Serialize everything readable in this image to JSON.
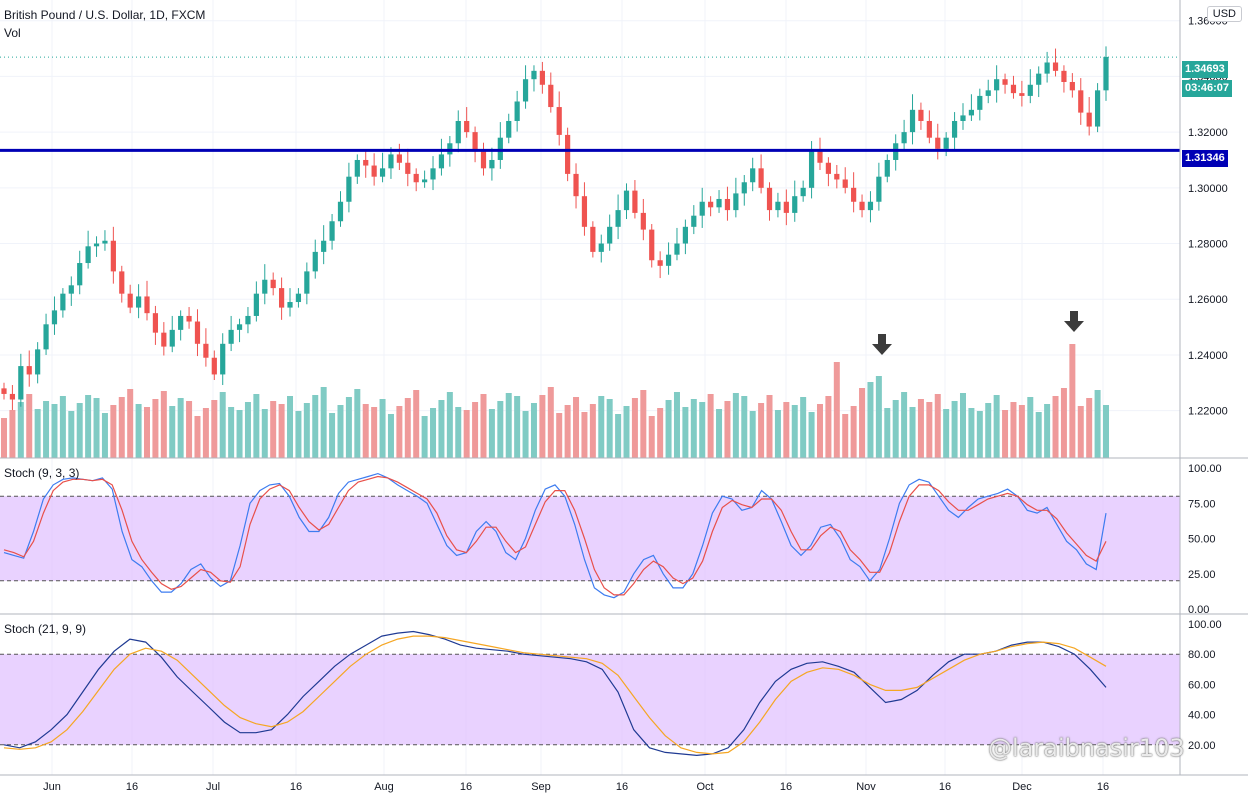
{
  "header": {
    "symbol_title": "British Pound / U.S. Dollar, 1D, FXCM",
    "volume_label": "Vol",
    "currency": "USD"
  },
  "price_badges": {
    "last_price": "1.34693",
    "countdown": "03:46:07",
    "line_price": "1.31346"
  },
  "colors": {
    "up": "#26a69a",
    "down": "#ef5350",
    "hline": "#0000b5",
    "stoch_k": "#2962ff",
    "stoch_d": "#ff6f4f",
    "slow_d": "#f5a623",
    "band_fill": "#e1c3ff"
  },
  "watermark": "@laraibnasir103",
  "annotations": [
    "down-arrow-icon",
    "down-arrow-icon"
  ],
  "chart_data": [
    {
      "type": "candlestick",
      "title": "British Pound / U.S. Dollar, 1D, FXCM",
      "ylim": [
        1.203,
        1.366
      ],
      "y_ticks": [
        "1.36000",
        "1.34000",
        "1.32000",
        "1.30000",
        "1.28000",
        "1.26000",
        "1.24000",
        "1.22000"
      ],
      "x_ticks": [
        "Jun",
        "16",
        "Jul",
        "16",
        "Aug",
        "16",
        "Sep",
        "16",
        "Oct",
        "16",
        "Nov",
        "16",
        "Dec",
        "16"
      ],
      "horizontal_line": 1.31346,
      "last_price": 1.34693,
      "close_path": [
        [
          0,
          1.226
        ],
        [
          1,
          1.224
        ],
        [
          2,
          1.236
        ],
        [
          3,
          1.233
        ],
        [
          4,
          1.242
        ],
        [
          5,
          1.251
        ],
        [
          6,
          1.256
        ],
        [
          7,
          1.262
        ],
        [
          8,
          1.265
        ],
        [
          9,
          1.273
        ],
        [
          10,
          1.279
        ],
        [
          11,
          1.28
        ],
        [
          12,
          1.281
        ],
        [
          13,
          1.27
        ],
        [
          14,
          1.262
        ],
        [
          15,
          1.257
        ],
        [
          16,
          1.261
        ],
        [
          17,
          1.255
        ],
        [
          18,
          1.248
        ],
        [
          19,
          1.243
        ],
        [
          20,
          1.249
        ],
        [
          21,
          1.254
        ],
        [
          22,
          1.252
        ],
        [
          23,
          1.244
        ],
        [
          24,
          1.239
        ],
        [
          25,
          1.233
        ],
        [
          26,
          1.244
        ],
        [
          27,
          1.249
        ],
        [
          28,
          1.251
        ],
        [
          29,
          1.254
        ],
        [
          30,
          1.262
        ],
        [
          31,
          1.267
        ],
        [
          32,
          1.264
        ],
        [
          33,
          1.257
        ],
        [
          34,
          1.259
        ],
        [
          35,
          1.262
        ],
        [
          36,
          1.27
        ],
        [
          37,
          1.277
        ],
        [
          38,
          1.281
        ],
        [
          39,
          1.288
        ],
        [
          40,
          1.295
        ],
        [
          41,
          1.304
        ],
        [
          42,
          1.31
        ],
        [
          43,
          1.308
        ],
        [
          44,
          1.304
        ],
        [
          45,
          1.307
        ],
        [
          46,
          1.312
        ],
        [
          47,
          1.309
        ],
        [
          48,
          1.305
        ],
        [
          49,
          1.302
        ],
        [
          50,
          1.303
        ],
        [
          51,
          1.307
        ],
        [
          52,
          1.312
        ],
        [
          53,
          1.316
        ],
        [
          54,
          1.324
        ],
        [
          55,
          1.32
        ],
        [
          56,
          1.313
        ],
        [
          57,
          1.307
        ],
        [
          58,
          1.31
        ],
        [
          59,
          1.318
        ],
        [
          60,
          1.324
        ],
        [
          61,
          1.331
        ],
        [
          62,
          1.339
        ],
        [
          63,
          1.342
        ],
        [
          64,
          1.337
        ],
        [
          65,
          1.329
        ],
        [
          66,
          1.319
        ],
        [
          67,
          1.305
        ],
        [
          68,
          1.297
        ],
        [
          69,
          1.286
        ],
        [
          70,
          1.277
        ],
        [
          71,
          1.28
        ],
        [
          72,
          1.286
        ],
        [
          73,
          1.292
        ],
        [
          74,
          1.299
        ],
        [
          75,
          1.291
        ],
        [
          76,
          1.285
        ],
        [
          77,
          1.274
        ],
        [
          78,
          1.272
        ],
        [
          79,
          1.276
        ],
        [
          80,
          1.28
        ],
        [
          81,
          1.286
        ],
        [
          82,
          1.29
        ],
        [
          83,
          1.295
        ],
        [
          84,
          1.293
        ],
        [
          85,
          1.296
        ],
        [
          86,
          1.292
        ],
        [
          87,
          1.298
        ],
        [
          88,
          1.302
        ],
        [
          89,
          1.307
        ],
        [
          90,
          1.3
        ],
        [
          91,
          1.292
        ],
        [
          92,
          1.295
        ],
        [
          93,
          1.291
        ],
        [
          94,
          1.297
        ],
        [
          95,
          1.3
        ],
        [
          96,
          1.313
        ],
        [
          97,
          1.309
        ],
        [
          98,
          1.305
        ],
        [
          99,
          1.303
        ],
        [
          100,
          1.3
        ],
        [
          101,
          1.295
        ],
        [
          102,
          1.292
        ],
        [
          103,
          1.295
        ],
        [
          104,
          1.304
        ],
        [
          105,
          1.31
        ],
        [
          106,
          1.316
        ],
        [
          107,
          1.32
        ],
        [
          108,
          1.328
        ],
        [
          109,
          1.324
        ],
        [
          110,
          1.318
        ],
        [
          111,
          1.314
        ],
        [
          112,
          1.318
        ],
        [
          113,
          1.324
        ],
        [
          114,
          1.326
        ],
        [
          115,
          1.328
        ],
        [
          116,
          1.333
        ],
        [
          117,
          1.335
        ],
        [
          118,
          1.339
        ],
        [
          119,
          1.337
        ],
        [
          120,
          1.334
        ],
        [
          121,
          1.333
        ],
        [
          122,
          1.337
        ],
        [
          123,
          1.341
        ],
        [
          124,
          1.345
        ],
        [
          125,
          1.342
        ],
        [
          126,
          1.338
        ],
        [
          127,
          1.335
        ],
        [
          128,
          1.327
        ],
        [
          129,
          1.322
        ],
        [
          130,
          1.335
        ],
        [
          131,
          1.347
        ]
      ],
      "markers": [
        {
          "label": "down-arrow-icon",
          "at": "volume spike early Nov"
        },
        {
          "label": "down-arrow-icon",
          "at": "volume spike mid Dec"
        }
      ]
    },
    {
      "type": "bar",
      "title": "Vol",
      "note": "volume histogram, colored by candle direction",
      "relative_spikes": [
        "early Nov",
        "mid Dec"
      ]
    },
    {
      "type": "line",
      "title": "Stoch (9, 3, 3)",
      "ylim": [
        0,
        100
      ],
      "y_ticks": [
        "100.00",
        "75.00",
        "50.00",
        "25.00",
        "0.00"
      ],
      "bands": [
        20,
        80
      ],
      "series": [
        {
          "name": "%K",
          "values": [
            40,
            38,
            36,
            55,
            78,
            88,
            92,
            93,
            92,
            91,
            93,
            85,
            55,
            35,
            30,
            20,
            12,
            12,
            18,
            28,
            32,
            22,
            16,
            20,
            45,
            75,
            84,
            88,
            89,
            80,
            65,
            55,
            55,
            65,
            82,
            90,
            92,
            94,
            96,
            93,
            88,
            84,
            80,
            75,
            60,
            45,
            38,
            40,
            55,
            62,
            55,
            40,
            35,
            50,
            70,
            85,
            88,
            80,
            60,
            35,
            15,
            10,
            8,
            12,
            25,
            35,
            38,
            25,
            15,
            15,
            25,
            45,
            68,
            80,
            78,
            70,
            72,
            84,
            78,
            62,
            45,
            38,
            45,
            58,
            60,
            50,
            35,
            30,
            20,
            28,
            50,
            75,
            88,
            92,
            90,
            80,
            70,
            65,
            72,
            78,
            80,
            82,
            85,
            80,
            70,
            68,
            72,
            60,
            48,
            42,
            32,
            28,
            68
          ]
        },
        {
          "name": "%D",
          "values": [
            42,
            40,
            37,
            48,
            68,
            84,
            90,
            92,
            92,
            91,
            92,
            88,
            70,
            48,
            35,
            26,
            18,
            14,
            16,
            22,
            28,
            26,
            20,
            19,
            30,
            60,
            78,
            85,
            88,
            84,
            72,
            62,
            56,
            60,
            72,
            84,
            90,
            92,
            94,
            93,
            90,
            86,
            82,
            78,
            68,
            52,
            42,
            40,
            48,
            58,
            58,
            48,
            40,
            44,
            60,
            76,
            84,
            84,
            70,
            50,
            28,
            15,
            10,
            10,
            18,
            28,
            34,
            30,
            22,
            18,
            22,
            34,
            55,
            72,
            77,
            74,
            72,
            78,
            78,
            70,
            55,
            42,
            42,
            52,
            58,
            55,
            42,
            35,
            26,
            26,
            40,
            62,
            80,
            88,
            88,
            84,
            76,
            70,
            70,
            74,
            78,
            80,
            82,
            80,
            74,
            70,
            70,
            64,
            54,
            46,
            38,
            34,
            48
          ]
        }
      ]
    },
    {
      "type": "line",
      "title": "Stoch (21, 9, 9)",
      "ylim": [
        0,
        100
      ],
      "y_ticks": [
        "100.00",
        "80.00",
        "60.00",
        "40.00",
        "20.00"
      ],
      "bands": [
        20,
        80
      ],
      "series": [
        {
          "name": "%K",
          "values": [
            20,
            18,
            22,
            30,
            40,
            55,
            70,
            82,
            90,
            88,
            78,
            65,
            55,
            45,
            35,
            28,
            28,
            30,
            40,
            52,
            62,
            72,
            80,
            86,
            92,
            94,
            95,
            93,
            90,
            86,
            84,
            83,
            82,
            80,
            79,
            78,
            77,
            75,
            70,
            55,
            30,
            18,
            15,
            14,
            13,
            14,
            18,
            30,
            48,
            62,
            70,
            74,
            75,
            72,
            68,
            58,
            48,
            50,
            56,
            66,
            75,
            80,
            80,
            82,
            86,
            88,
            88,
            85,
            80,
            70,
            58
          ]
        },
        {
          "name": "%D",
          "values": [
            18,
            17,
            18,
            22,
            30,
            42,
            56,
            70,
            80,
            84,
            82,
            76,
            66,
            56,
            46,
            38,
            34,
            32,
            35,
            42,
            52,
            62,
            72,
            80,
            86,
            90,
            92,
            92,
            91,
            89,
            87,
            85,
            83,
            81,
            80,
            79,
            78,
            77,
            74,
            66,
            52,
            38,
            26,
            18,
            15,
            14,
            15,
            22,
            35,
            50,
            62,
            68,
            71,
            70,
            66,
            60,
            56,
            56,
            58,
            64,
            70,
            76,
            80,
            82,
            85,
            87,
            88,
            87,
            84,
            78,
            72
          ]
        }
      ]
    }
  ]
}
